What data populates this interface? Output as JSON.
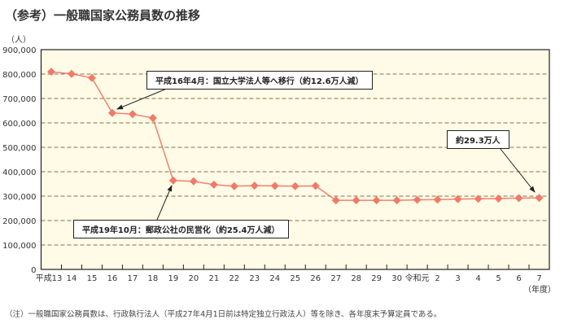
{
  "title": "（参考）一般職国家公務員数の推移",
  "note": "（注）一般職国家公務員数は、行政執行法人（平成27年4月1日前は特定独立行政法人）等を除き、各年度末予算定員である。",
  "chart_data": {
    "type": "line",
    "ylabel": "（人）",
    "xlabel": "（年度）",
    "ylim": [
      0,
      900000
    ],
    "yticks": [
      "0",
      "100,000",
      "200,000",
      "300,000",
      "400,000",
      "500,000",
      "600,000",
      "700,000",
      "800,000",
      "900,000"
    ],
    "grid": true,
    "categories": [
      "平成13",
      "14",
      "15",
      "16",
      "17",
      "18",
      "19",
      "20",
      "21",
      "22",
      "23",
      "24",
      "25",
      "26",
      "27",
      "28",
      "29",
      "30",
      "令和元",
      "2",
      "3",
      "4",
      "5",
      "6",
      "7"
    ],
    "values": [
      809000,
      801000,
      784000,
      641000,
      636000,
      620000,
      364000,
      361000,
      347000,
      341000,
      343000,
      342000,
      341000,
      342000,
      283000,
      283000,
      283000,
      283000,
      285000,
      286000,
      288000,
      289000,
      290000,
      292000,
      293000
    ],
    "colors": {
      "line": "#f08070",
      "marker": "#f07a68",
      "background": "#fffbe6",
      "grid": "#8a6f50"
    },
    "annotations": [
      {
        "text": "平成16年4月：国立大学法人等へ移行（約12.6万人減）",
        "target": "16"
      },
      {
        "text": "平成19年10月：郵政公社の民営化（約25.4万人減）",
        "target": "19"
      },
      {
        "text": "約29.3万人",
        "target": "7"
      }
    ]
  }
}
